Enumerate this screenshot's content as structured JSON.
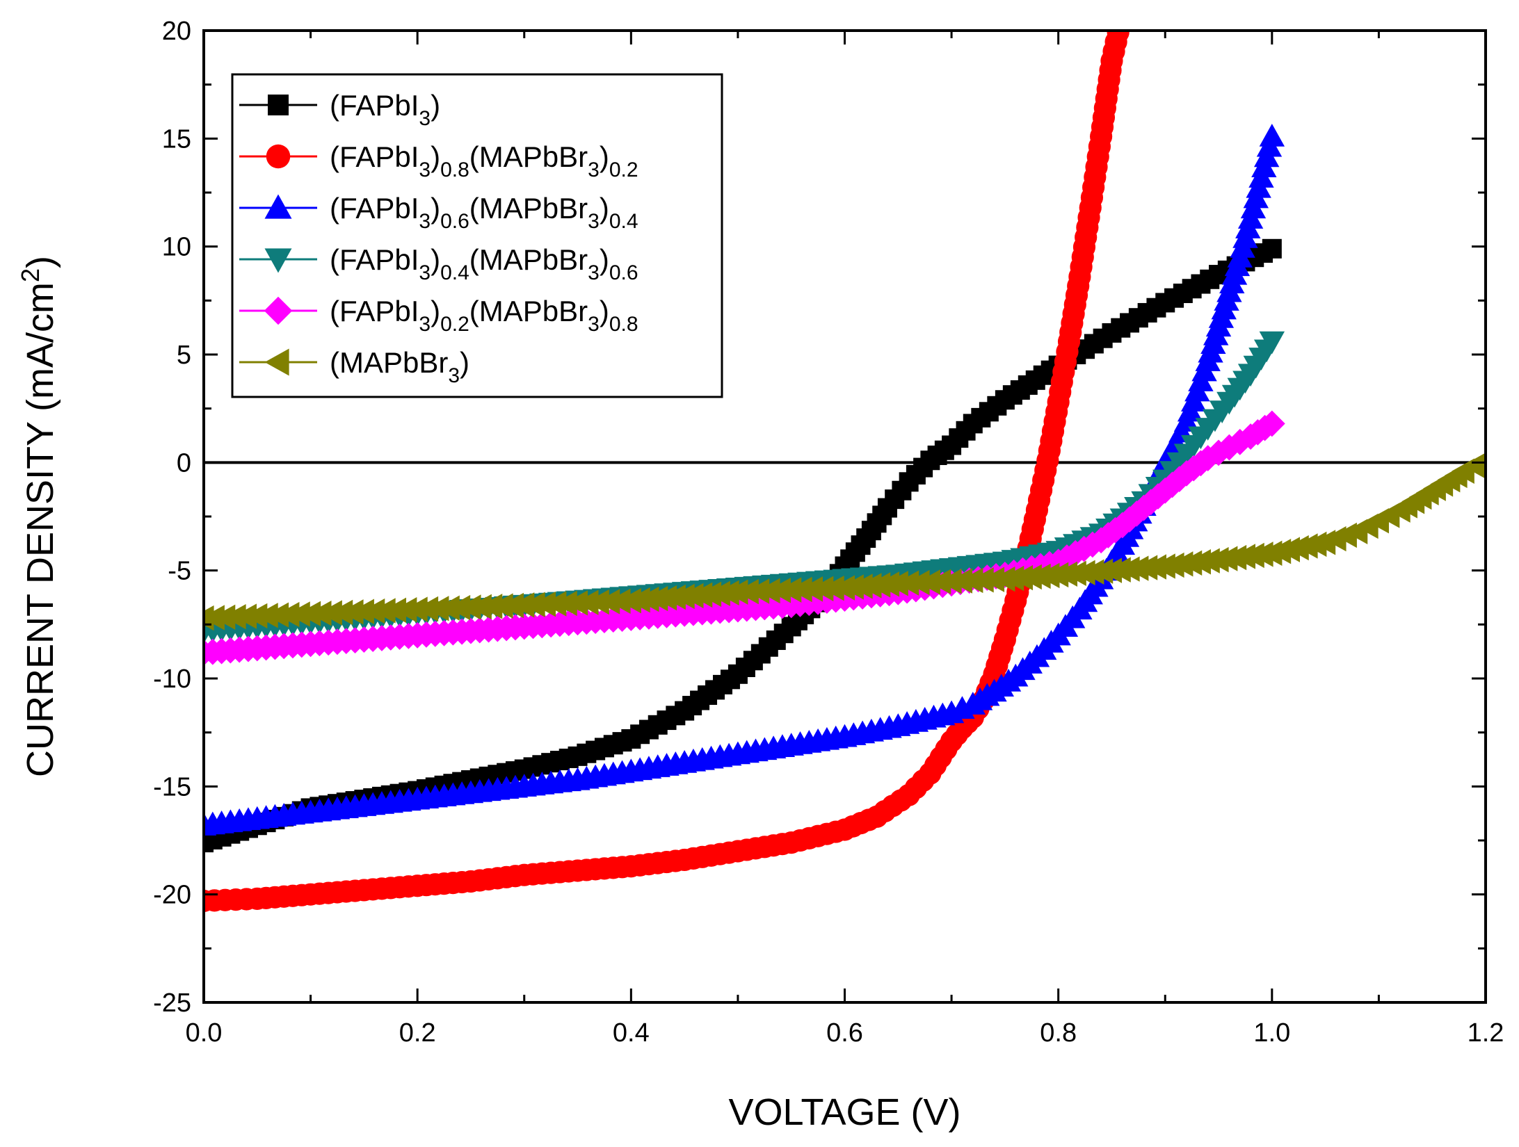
{
  "chart_data": {
    "type": "line",
    "title": "",
    "xlabel": "VOLTAGE (V)",
    "ylabel": "CURRENT DENSITY (mA/cm²)",
    "ylabel_parts": {
      "base": "CURRENT DENSITY (mA/cm",
      "sup": "2",
      "tail": ")"
    },
    "xlim": [
      0.0,
      1.2
    ],
    "ylim": [
      -25,
      20
    ],
    "x_ticks": [
      "0.0",
      "0.2",
      "0.4",
      "0.6",
      "0.8",
      "1.0",
      "1.2"
    ],
    "y_ticks": [
      "-25",
      "-20",
      "-15",
      "-10",
      "-5",
      "0",
      "5",
      "10",
      "15",
      "20"
    ],
    "legend_position": "top-left",
    "zero_line": true,
    "series": [
      {
        "name": "(FAPbI3)",
        "label_parts": [
          {
            "t": "(FAPbI"
          },
          {
            "t": "3",
            "sub": true
          },
          {
            "t": ")"
          }
        ],
        "color": "#000000",
        "marker": "square",
        "x": [
          0.0,
          0.05,
          0.1,
          0.15,
          0.2,
          0.25,
          0.3,
          0.35,
          0.4,
          0.45,
          0.5,
          0.55,
          0.58,
          0.6,
          0.62,
          0.64,
          0.66,
          0.68,
          0.7,
          0.72,
          0.75,
          0.8,
          0.85,
          0.9,
          0.95,
          1.0
        ],
        "y": [
          -17.6,
          -16.8,
          -16.0,
          -15.6,
          -15.2,
          -14.7,
          -14.2,
          -13.6,
          -12.8,
          -11.5,
          -9.8,
          -7.6,
          -6.2,
          -4.8,
          -3.5,
          -2.1,
          -0.9,
          0.1,
          0.8,
          1.8,
          2.9,
          4.5,
          6.0,
          7.4,
          8.7,
          9.9
        ]
      },
      {
        "name": "(FAPbI3)0.8(MAPbBr3)0.2",
        "label_parts": [
          {
            "t": "(FAPbI"
          },
          {
            "t": "3",
            "sub": true
          },
          {
            "t": ")"
          },
          {
            "t": "0.8",
            "sub": true
          },
          {
            "t": "(MAPbBr"
          },
          {
            "t": "3",
            "sub": true
          },
          {
            "t": ")"
          },
          {
            "t": "0.2",
            "sub": true
          }
        ],
        "color": "#ff0000",
        "marker": "circle",
        "x": [
          0.0,
          0.05,
          0.1,
          0.15,
          0.2,
          0.25,
          0.3,
          0.35,
          0.4,
          0.45,
          0.5,
          0.55,
          0.6,
          0.63,
          0.66,
          0.68,
          0.7,
          0.71,
          0.72,
          0.73,
          0.74,
          0.75,
          0.76,
          0.77,
          0.78,
          0.79,
          0.8,
          0.81,
          0.82,
          0.83,
          0.84,
          0.85,
          0.86
        ],
        "y": [
          -20.3,
          -20.2,
          -20.0,
          -19.8,
          -19.6,
          -19.4,
          -19.1,
          -18.9,
          -18.7,
          -18.4,
          -18.0,
          -17.6,
          -17.0,
          -16.4,
          -15.4,
          -14.4,
          -12.9,
          -12.3,
          -11.8,
          -11.0,
          -9.8,
          -8.2,
          -6.4,
          -4.4,
          -2.2,
          0.1,
          2.8,
          5.6,
          8.6,
          11.8,
          15.1,
          18.6,
          20.8
        ]
      },
      {
        "name": "(FAPbI3)0.6(MAPbBr3)0.4",
        "label_parts": [
          {
            "t": "(FAPbI"
          },
          {
            "t": "3",
            "sub": true
          },
          {
            "t": ")"
          },
          {
            "t": "0.6",
            "sub": true
          },
          {
            "t": "(MAPbBr"
          },
          {
            "t": "3",
            "sub": true
          },
          {
            "t": ")"
          },
          {
            "t": "0.4",
            "sub": true
          }
        ],
        "color": "#0000ff",
        "marker": "triangle-up",
        "x": [
          0.0,
          0.05,
          0.1,
          0.15,
          0.2,
          0.25,
          0.3,
          0.35,
          0.4,
          0.45,
          0.5,
          0.55,
          0.6,
          0.65,
          0.7,
          0.72,
          0.74,
          0.76,
          0.78,
          0.8,
          0.82,
          0.84,
          0.86,
          0.88,
          0.9,
          0.91,
          0.92,
          0.93,
          0.94,
          0.95,
          0.96,
          0.97,
          0.98,
          0.99,
          1.0
        ],
        "y": [
          -16.8,
          -16.5,
          -16.2,
          -15.9,
          -15.6,
          -15.3,
          -15.0,
          -14.7,
          -14.3,
          -13.9,
          -13.5,
          -13.1,
          -12.7,
          -12.2,
          -11.6,
          -11.2,
          -10.6,
          -9.9,
          -9.0,
          -8.0,
          -6.8,
          -5.4,
          -3.8,
          -2.0,
          0.0,
          0.9,
          1.9,
          3.3,
          4.7,
          6.3,
          7.9,
          9.5,
          11.3,
          13.2,
          15.1
        ]
      },
      {
        "name": "(FAPbI3)0.4(MAPbBr3)0.6",
        "label_parts": [
          {
            "t": "(FAPbI"
          },
          {
            "t": "3",
            "sub": true
          },
          {
            "t": ")"
          },
          {
            "t": "0.4",
            "sub": true
          },
          {
            "t": "(MAPbBr"
          },
          {
            "t": "3",
            "sub": true
          },
          {
            "t": ")"
          },
          {
            "t": "0.6",
            "sub": true
          }
        ],
        "color": "#0e7c7b",
        "marker": "triangle-down",
        "x": [
          0.0,
          0.05,
          0.1,
          0.15,
          0.2,
          0.25,
          0.3,
          0.35,
          0.4,
          0.45,
          0.5,
          0.55,
          0.6,
          0.65,
          0.7,
          0.75,
          0.8,
          0.84,
          0.86,
          0.88,
          0.9,
          0.92,
          0.94,
          0.96,
          0.98,
          1.0
        ],
        "y": [
          -7.8,
          -7.6,
          -7.4,
          -7.2,
          -7.0,
          -6.8,
          -6.6,
          -6.4,
          -6.2,
          -6.0,
          -5.8,
          -5.6,
          -5.4,
          -5.2,
          -4.9,
          -4.6,
          -4.1,
          -3.3,
          -2.6,
          -1.8,
          -0.8,
          0.4,
          1.6,
          2.8,
          4.1,
          5.6
        ]
      },
      {
        "name": "(FAPbI3)0.2(MAPbBr3)0.8",
        "label_parts": [
          {
            "t": "(FAPbI"
          },
          {
            "t": "3",
            "sub": true
          },
          {
            "t": ")"
          },
          {
            "t": "0.2",
            "sub": true
          },
          {
            "t": "(MAPbBr"
          },
          {
            "t": "3",
            "sub": true
          },
          {
            "t": ")"
          },
          {
            "t": "0.8",
            "sub": true
          }
        ],
        "color": "#ff00ff",
        "marker": "diamond",
        "x": [
          0.0,
          0.05,
          0.1,
          0.15,
          0.2,
          0.25,
          0.3,
          0.35,
          0.4,
          0.45,
          0.5,
          0.55,
          0.6,
          0.65,
          0.7,
          0.75,
          0.8,
          0.84,
          0.86,
          0.88,
          0.9,
          0.92,
          0.94,
          0.96,
          0.98,
          1.0
        ],
        "y": [
          -8.8,
          -8.6,
          -8.4,
          -8.2,
          -8.0,
          -7.8,
          -7.6,
          -7.4,
          -7.2,
          -7.0,
          -6.8,
          -6.6,
          -6.3,
          -6.0,
          -5.6,
          -5.2,
          -4.6,
          -3.6,
          -2.9,
          -2.1,
          -1.3,
          -0.5,
          0.2,
          0.7,
          1.2,
          1.8
        ]
      },
      {
        "name": "(MAPbBr3)",
        "label_parts": [
          {
            "t": "(MAPbBr"
          },
          {
            "t": "3",
            "sub": true
          },
          {
            "t": ")"
          }
        ],
        "color": "#808000",
        "marker": "triangle-left",
        "x": [
          0.0,
          0.05,
          0.1,
          0.15,
          0.2,
          0.25,
          0.3,
          0.35,
          0.4,
          0.45,
          0.5,
          0.55,
          0.6,
          0.65,
          0.7,
          0.75,
          0.8,
          0.85,
          0.9,
          0.95,
          1.0,
          1.05,
          1.08,
          1.1,
          1.12,
          1.14,
          1.16,
          1.18,
          1.2
        ],
        "y": [
          -7.2,
          -7.1,
          -7.0,
          -6.9,
          -6.8,
          -6.7,
          -6.6,
          -6.5,
          -6.4,
          -6.2,
          -6.0,
          -5.9,
          -5.8,
          -5.6,
          -5.5,
          -5.4,
          -5.2,
          -5.0,
          -4.8,
          -4.5,
          -4.2,
          -3.7,
          -3.2,
          -2.7,
          -2.2,
          -1.6,
          -1.0,
          -0.4,
          0.1
        ]
      }
    ]
  }
}
